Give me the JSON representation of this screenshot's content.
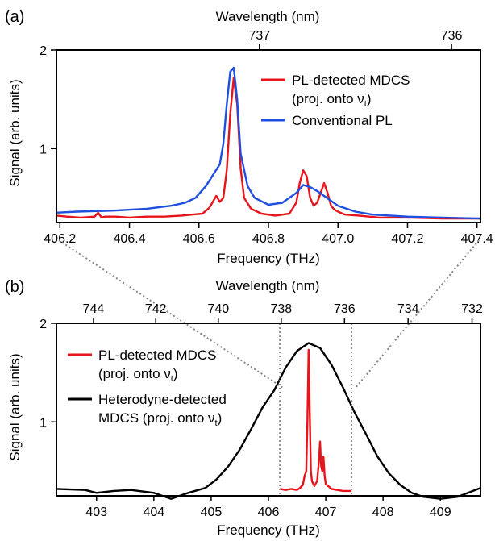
{
  "chart_data": [
    {
      "panel_label": "(a)",
      "type": "line",
      "xlabel": "Frequency (THz)",
      "ylabel": "Signal (arb. units)",
      "top_xlabel": "Wavelength (nm)",
      "xlim": [
        406.19,
        407.41
      ],
      "ylim": [
        0.25,
        2.0
      ],
      "xticks": [
        406.2,
        406.4,
        406.6,
        406.8,
        407.0,
        407.2,
        407.4
      ],
      "xtick_labels": [
        "406.2",
        "406.4",
        "406.6",
        "406.8",
        "407.0",
        "407.2",
        "407.4"
      ],
      "yticks": [
        1,
        2
      ],
      "ytick_labels": [
        "1",
        "2"
      ],
      "top_ticks": [
        737,
        736
      ],
      "top_tick_labels": [
        "737",
        "736"
      ],
      "legend_position": "top-right",
      "series": [
        {
          "name": "PL-detected MDCS",
          "name_line2": "(proj. onto ν",
          "name_sub": "t",
          "name_close": ")",
          "color": "#e8141b",
          "x": [
            406.19,
            406.22,
            406.26,
            406.3,
            406.31,
            406.32,
            406.33,
            406.36,
            406.4,
            406.45,
            406.5,
            406.55,
            406.58,
            406.61,
            406.63,
            406.65,
            406.66,
            406.67,
            406.68,
            406.69,
            406.7,
            406.71,
            406.72,
            406.73,
            406.75,
            406.78,
            406.82,
            406.86,
            406.88,
            406.89,
            406.9,
            406.91,
            406.92,
            406.93,
            406.94,
            406.95,
            406.96,
            406.97,
            406.98,
            406.99,
            407.0,
            407.02,
            407.06,
            407.12,
            407.2,
            407.3,
            407.41
          ],
          "y": [
            0.32,
            0.31,
            0.3,
            0.31,
            0.35,
            0.3,
            0.31,
            0.31,
            0.3,
            0.31,
            0.31,
            0.32,
            0.33,
            0.34,
            0.4,
            0.52,
            0.46,
            0.5,
            0.78,
            1.35,
            1.72,
            1.45,
            0.8,
            0.5,
            0.39,
            0.34,
            0.32,
            0.34,
            0.45,
            0.65,
            0.78,
            0.72,
            0.5,
            0.42,
            0.45,
            0.55,
            0.65,
            0.55,
            0.42,
            0.38,
            0.36,
            0.33,
            0.32,
            0.3,
            0.3,
            0.29,
            0.29
          ]
        },
        {
          "name": "Conventional PL",
          "color": "#1f4fe0",
          "x": [
            406.19,
            406.25,
            406.35,
            406.45,
            406.52,
            406.56,
            406.59,
            406.62,
            406.64,
            406.66,
            406.67,
            406.68,
            406.69,
            406.7,
            406.71,
            406.72,
            406.74,
            406.76,
            406.8,
            406.84,
            406.88,
            406.9,
            406.92,
            406.94,
            406.96,
            406.98,
            407.0,
            407.05,
            407.1,
            407.2,
            407.3,
            407.41
          ],
          "y": [
            0.35,
            0.36,
            0.37,
            0.39,
            0.42,
            0.45,
            0.5,
            0.62,
            0.73,
            0.84,
            1.05,
            1.45,
            1.78,
            1.82,
            1.5,
            0.95,
            0.62,
            0.5,
            0.43,
            0.45,
            0.55,
            0.63,
            0.61,
            0.57,
            0.52,
            0.47,
            0.42,
            0.36,
            0.33,
            0.31,
            0.3,
            0.29
          ]
        }
      ]
    },
    {
      "panel_label": "(b)",
      "type": "line",
      "xlabel": "Frequency (THz)",
      "ylabel": "Signal (arb. units)",
      "top_xlabel": "Wavelength (nm)",
      "xlim": [
        402.3,
        409.7
      ],
      "ylim": [
        0.25,
        2.0
      ],
      "xticks": [
        403,
        404,
        405,
        406,
        407,
        408,
        409
      ],
      "xtick_labels": [
        "403",
        "404",
        "405",
        "406",
        "407",
        "408",
        "409"
      ],
      "yticks": [
        1,
        2
      ],
      "ytick_labels": [
        "1",
        "2"
      ],
      "top_ticks": [
        744,
        742,
        740,
        738,
        736,
        734,
        732
      ],
      "top_tick_labels": [
        "744",
        "742",
        "740",
        "738",
        "736",
        "734",
        "732"
      ],
      "legend_position": "left",
      "zoom_window": [
        406.2,
        407.45
      ],
      "series": [
        {
          "name": "PL-detected MDCS",
          "name_line2": "(proj. onto ν",
          "name_sub": "t",
          "name_close": ")",
          "color": "#e8141b",
          "x": [
            406.2,
            406.3,
            406.4,
            406.5,
            406.55,
            406.6,
            406.63,
            406.66,
            406.68,
            406.7,
            406.72,
            406.74,
            406.76,
            406.8,
            406.85,
            406.88,
            406.9,
            406.92,
            406.94,
            406.96,
            406.98,
            407.0,
            407.1,
            407.2,
            407.3,
            407.45
          ],
          "y": [
            0.32,
            0.31,
            0.32,
            0.31,
            0.33,
            0.36,
            0.45,
            0.5,
            1.0,
            1.73,
            1.1,
            0.5,
            0.4,
            0.35,
            0.4,
            0.6,
            0.8,
            0.55,
            0.5,
            0.65,
            0.45,
            0.37,
            0.32,
            0.31,
            0.3,
            0.3
          ]
        },
        {
          "name": "Heterodyne-detected",
          "name_line2": "MDCS (proj. onto ν",
          "name_sub": "t",
          "name_close": ")",
          "color": "#000000",
          "x": [
            402.3,
            402.8,
            403.0,
            403.3,
            403.6,
            404.0,
            404.3,
            404.6,
            404.9,
            405.1,
            405.3,
            405.5,
            405.7,
            405.9,
            406.1,
            406.3,
            406.5,
            406.7,
            406.9,
            407.1,
            407.3,
            407.5,
            407.7,
            407.9,
            408.1,
            408.3,
            408.5,
            408.7,
            409.0,
            409.3,
            409.7
          ],
          "y": [
            0.32,
            0.31,
            0.28,
            0.3,
            0.31,
            0.28,
            0.22,
            0.28,
            0.33,
            0.42,
            0.55,
            0.72,
            0.93,
            1.15,
            1.32,
            1.55,
            1.72,
            1.8,
            1.75,
            1.58,
            1.35,
            1.1,
            0.88,
            0.65,
            0.48,
            0.36,
            0.28,
            0.24,
            0.22,
            0.24,
            0.33
          ]
        }
      ]
    }
  ]
}
